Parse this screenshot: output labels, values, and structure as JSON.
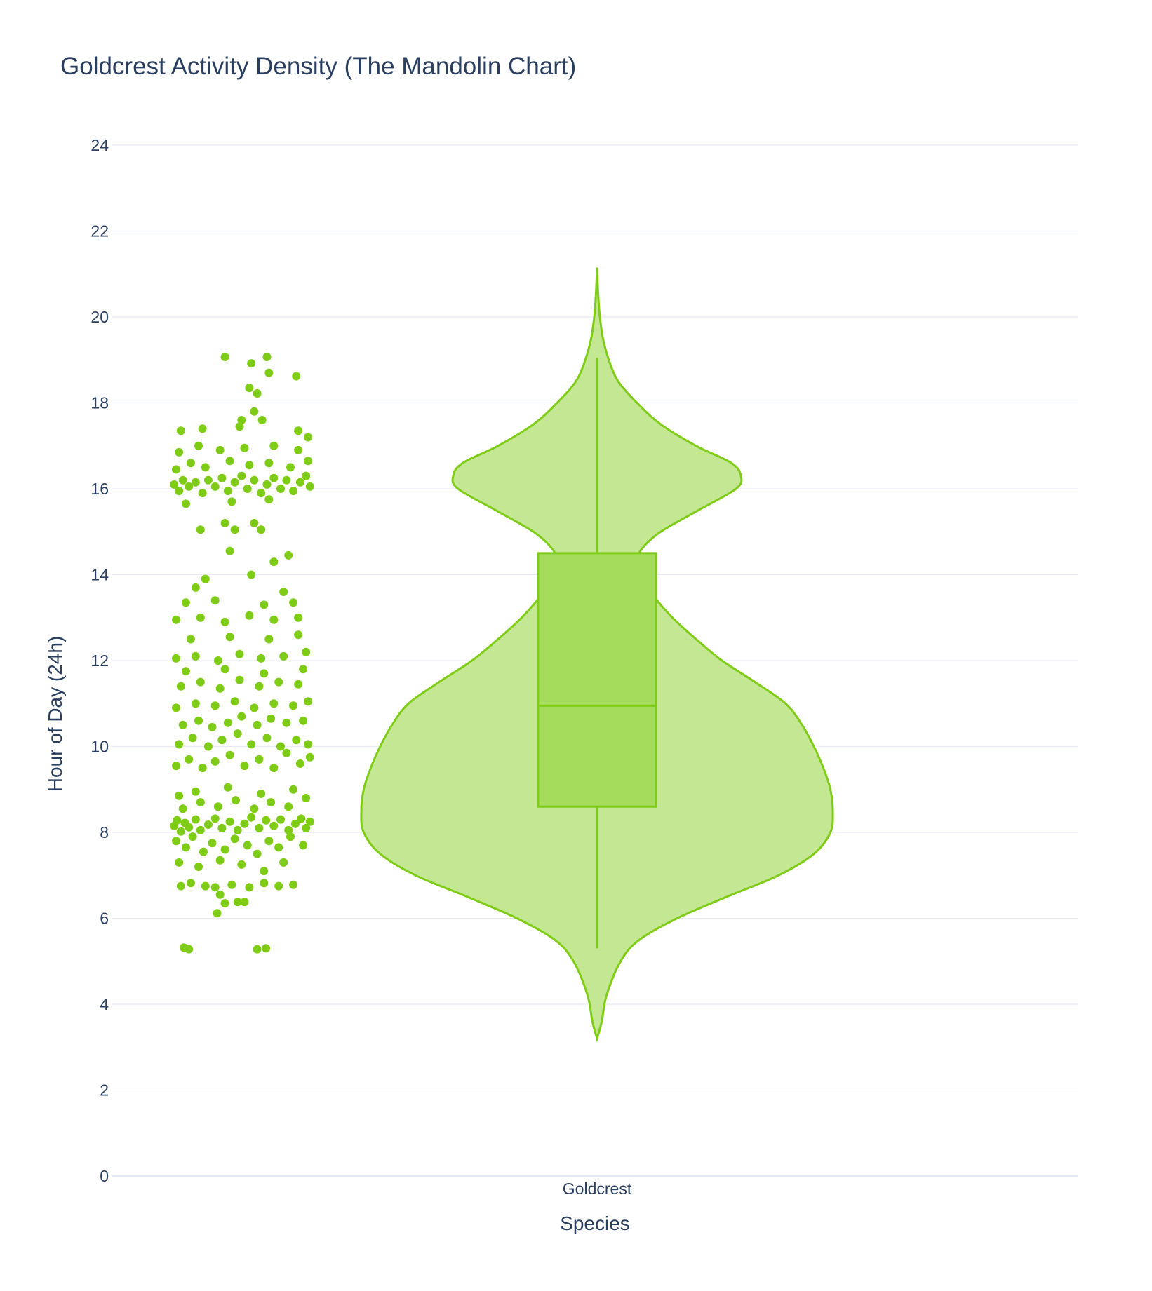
{
  "colors": {
    "accent": "#7fcc16",
    "violin_fill": "#c4e794",
    "box_fill": "#a6dc5c",
    "grid": "#e6ebf3",
    "text": "#2a3f5f",
    "background": "#ffffff"
  },
  "chart_data": {
    "type": "violin",
    "title": "Goldcrest Activity Density (The Mandolin Chart)",
    "xlabel": "Species",
    "ylabel": "Hour of Day (24h)",
    "categories": [
      "Goldcrest"
    ],
    "ylim": [
      0,
      24
    ],
    "yticks": [
      "0",
      "2",
      "4",
      "6",
      "8",
      "10",
      "12",
      "14",
      "16",
      "18",
      "20",
      "22",
      "24"
    ],
    "grid": true,
    "points_shown": "all",
    "box": {
      "min": 5.3,
      "q1": 8.6,
      "median": 10.95,
      "q3": 14.5,
      "max": 19.05
    },
    "kde_extent": [
      3.2,
      21.15
    ],
    "density_profile": [
      [
        3.2,
        0.0
      ],
      [
        3.6,
        0.02
      ],
      [
        4.2,
        0.04
      ],
      [
        5.0,
        0.1
      ],
      [
        5.5,
        0.18
      ],
      [
        6.0,
        0.34
      ],
      [
        6.5,
        0.55
      ],
      [
        7.0,
        0.77
      ],
      [
        7.5,
        0.92
      ],
      [
        8.0,
        0.99
      ],
      [
        8.5,
        1.0
      ],
      [
        9.0,
        0.99
      ],
      [
        9.5,
        0.96
      ],
      [
        10.0,
        0.92
      ],
      [
        10.5,
        0.87
      ],
      [
        11.0,
        0.8
      ],
      [
        11.5,
        0.67
      ],
      [
        12.0,
        0.53
      ],
      [
        12.5,
        0.42
      ],
      [
        13.0,
        0.32
      ],
      [
        13.5,
        0.24
      ],
      [
        14.0,
        0.18
      ],
      [
        14.3,
        0.17
      ],
      [
        14.6,
        0.19
      ],
      [
        15.0,
        0.27
      ],
      [
        15.5,
        0.43
      ],
      [
        16.0,
        0.59
      ],
      [
        16.3,
        0.61
      ],
      [
        16.6,
        0.57
      ],
      [
        17.0,
        0.42
      ],
      [
        17.5,
        0.27
      ],
      [
        18.0,
        0.17
      ],
      [
        18.5,
        0.09
      ],
      [
        19.0,
        0.05
      ],
      [
        19.5,
        0.025
      ],
      [
        20.0,
        0.012
      ],
      [
        20.5,
        0.005
      ],
      [
        21.15,
        0.0
      ]
    ],
    "points": [
      [
        0.55,
        19.07
      ],
      [
        0.82,
        18.92
      ],
      [
        0.98,
        19.07
      ],
      [
        0.8,
        18.35
      ],
      [
        0.88,
        18.22
      ],
      [
        1.0,
        18.7
      ],
      [
        0.72,
        17.6
      ],
      [
        0.85,
        17.8
      ],
      [
        0.93,
        17.6
      ],
      [
        1.28,
        18.62
      ],
      [
        0.13,
        5.32
      ],
      [
        0.18,
        5.28
      ],
      [
        0.88,
        5.28
      ],
      [
        0.97,
        5.3
      ],
      [
        0.47,
        6.12
      ],
      [
        0.55,
        6.35
      ],
      [
        0.68,
        6.38
      ],
      [
        0.75,
        6.38
      ],
      [
        0.5,
        6.55
      ],
      [
        0.35,
        6.75
      ],
      [
        0.45,
        6.72
      ],
      [
        0.62,
        6.78
      ],
      [
        0.8,
        6.72
      ],
      [
        0.95,
        6.82
      ],
      [
        1.1,
        6.75
      ],
      [
        1.25,
        6.78
      ],
      [
        0.2,
        6.82
      ],
      [
        0.1,
        6.75
      ],
      [
        0.03,
        8.15
      ],
      [
        0.06,
        8.28
      ],
      [
        0.1,
        8.02
      ],
      [
        0.14,
        8.22
      ],
      [
        0.18,
        8.12
      ],
      [
        0.25,
        8.3
      ],
      [
        0.3,
        8.05
      ],
      [
        0.38,
        8.18
      ],
      [
        0.45,
        8.32
      ],
      [
        0.52,
        8.1
      ],
      [
        0.6,
        8.25
      ],
      [
        0.68,
        8.05
      ],
      [
        0.75,
        8.2
      ],
      [
        0.82,
        8.35
      ],
      [
        0.9,
        8.1
      ],
      [
        0.97,
        8.28
      ],
      [
        1.05,
        8.15
      ],
      [
        1.12,
        8.3
      ],
      [
        1.2,
        8.05
      ],
      [
        1.27,
        8.2
      ],
      [
        1.33,
        8.32
      ],
      [
        1.38,
        8.1
      ],
      [
        1.42,
        8.25
      ],
      [
        0.05,
        7.8
      ],
      [
        0.15,
        7.65
      ],
      [
        0.22,
        7.9
      ],
      [
        0.33,
        7.55
      ],
      [
        0.42,
        7.75
      ],
      [
        0.55,
        7.6
      ],
      [
        0.65,
        7.85
      ],
      [
        0.78,
        7.7
      ],
      [
        0.88,
        7.5
      ],
      [
        1.0,
        7.8
      ],
      [
        1.1,
        7.65
      ],
      [
        1.22,
        7.9
      ],
      [
        1.35,
        7.7
      ],
      [
        0.08,
        7.3
      ],
      [
        0.28,
        7.2
      ],
      [
        0.5,
        7.35
      ],
      [
        0.72,
        7.25
      ],
      [
        0.95,
        7.1
      ],
      [
        1.15,
        7.3
      ],
      [
        0.12,
        8.55
      ],
      [
        0.3,
        8.7
      ],
      [
        0.48,
        8.6
      ],
      [
        0.66,
        8.75
      ],
      [
        0.85,
        8.55
      ],
      [
        1.02,
        8.7
      ],
      [
        1.2,
        8.6
      ],
      [
        1.38,
        8.8
      ],
      [
        0.08,
        8.85
      ],
      [
        0.25,
        8.95
      ],
      [
        0.58,
        9.05
      ],
      [
        0.92,
        8.9
      ],
      [
        1.25,
        9.0
      ],
      [
        0.05,
        9.55
      ],
      [
        0.18,
        9.7
      ],
      [
        0.32,
        9.5
      ],
      [
        0.45,
        9.65
      ],
      [
        0.6,
        9.8
      ],
      [
        0.75,
        9.55
      ],
      [
        0.9,
        9.7
      ],
      [
        1.05,
        9.5
      ],
      [
        1.18,
        9.85
      ],
      [
        1.32,
        9.6
      ],
      [
        1.42,
        9.75
      ],
      [
        0.08,
        10.05
      ],
      [
        0.22,
        10.2
      ],
      [
        0.38,
        10.0
      ],
      [
        0.52,
        10.15
      ],
      [
        0.68,
        10.3
      ],
      [
        0.82,
        10.05
      ],
      [
        0.98,
        10.2
      ],
      [
        1.12,
        10.0
      ],
      [
        1.28,
        10.15
      ],
      [
        1.4,
        10.05
      ],
      [
        0.12,
        10.5
      ],
      [
        0.28,
        10.6
      ],
      [
        0.42,
        10.45
      ],
      [
        0.58,
        10.55
      ],
      [
        0.72,
        10.7
      ],
      [
        0.88,
        10.5
      ],
      [
        1.02,
        10.65
      ],
      [
        1.18,
        10.55
      ],
      [
        1.35,
        10.6
      ],
      [
        0.05,
        10.9
      ],
      [
        0.25,
        11.0
      ],
      [
        0.45,
        10.95
      ],
      [
        0.65,
        11.05
      ],
      [
        0.85,
        10.9
      ],
      [
        1.05,
        11.0
      ],
      [
        1.25,
        10.95
      ],
      [
        1.4,
        11.05
      ],
      [
        0.1,
        11.4
      ],
      [
        0.3,
        11.5
      ],
      [
        0.5,
        11.35
      ],
      [
        0.7,
        11.55
      ],
      [
        0.9,
        11.4
      ],
      [
        1.1,
        11.5
      ],
      [
        1.3,
        11.45
      ],
      [
        0.15,
        11.75
      ],
      [
        0.55,
        11.8
      ],
      [
        0.95,
        11.7
      ],
      [
        1.35,
        11.8
      ],
      [
        0.05,
        12.05
      ],
      [
        0.25,
        12.1
      ],
      [
        0.48,
        12.0
      ],
      [
        0.7,
        12.15
      ],
      [
        0.92,
        12.05
      ],
      [
        1.15,
        12.1
      ],
      [
        1.38,
        12.2
      ],
      [
        0.2,
        12.5
      ],
      [
        0.6,
        12.55
      ],
      [
        1.0,
        12.5
      ],
      [
        1.3,
        12.6
      ],
      [
        0.05,
        12.95
      ],
      [
        0.3,
        13.0
      ],
      [
        0.55,
        12.9
      ],
      [
        0.8,
        13.05
      ],
      [
        1.05,
        12.95
      ],
      [
        1.3,
        13.0
      ],
      [
        0.15,
        13.35
      ],
      [
        0.45,
        13.4
      ],
      [
        0.95,
        13.3
      ],
      [
        1.25,
        13.35
      ],
      [
        0.25,
        13.7
      ],
      [
        1.15,
        13.6
      ],
      [
        0.35,
        13.9
      ],
      [
        0.82,
        14.0
      ],
      [
        1.05,
        14.3
      ],
      [
        1.2,
        14.45
      ],
      [
        0.6,
        14.55
      ],
      [
        0.3,
        15.05
      ],
      [
        0.55,
        15.2
      ],
      [
        0.65,
        15.05
      ],
      [
        0.85,
        15.2
      ],
      [
        0.92,
        15.05
      ],
      [
        0.03,
        16.1
      ],
      [
        0.08,
        15.95
      ],
      [
        0.12,
        16.2
      ],
      [
        0.18,
        16.05
      ],
      [
        0.25,
        16.15
      ],
      [
        0.32,
        15.9
      ],
      [
        0.38,
        16.2
      ],
      [
        0.45,
        16.05
      ],
      [
        0.52,
        16.25
      ],
      [
        0.58,
        15.95
      ],
      [
        0.65,
        16.15
      ],
      [
        0.72,
        16.3
      ],
      [
        0.78,
        16.0
      ],
      [
        0.85,
        16.2
      ],
      [
        0.92,
        15.9
      ],
      [
        0.98,
        16.1
      ],
      [
        1.05,
        16.25
      ],
      [
        1.12,
        16.0
      ],
      [
        1.18,
        16.2
      ],
      [
        1.25,
        15.95
      ],
      [
        1.32,
        16.15
      ],
      [
        1.38,
        16.3
      ],
      [
        1.42,
        16.05
      ],
      [
        0.05,
        16.45
      ],
      [
        0.2,
        16.6
      ],
      [
        0.35,
        16.5
      ],
      [
        0.6,
        16.65
      ],
      [
        0.8,
        16.55
      ],
      [
        1.0,
        16.6
      ],
      [
        1.22,
        16.5
      ],
      [
        1.4,
        16.65
      ],
      [
        0.08,
        16.85
      ],
      [
        0.28,
        17.0
      ],
      [
        0.5,
        16.9
      ],
      [
        0.75,
        16.95
      ],
      [
        1.05,
        17.0
      ],
      [
        1.3,
        16.9
      ],
      [
        0.1,
        17.35
      ],
      [
        0.32,
        17.4
      ],
      [
        0.7,
        17.45
      ],
      [
        1.3,
        17.35
      ],
      [
        1.4,
        17.2
      ],
      [
        0.62,
        15.7
      ],
      [
        1.0,
        15.75
      ],
      [
        0.15,
        15.65
      ]
    ]
  }
}
